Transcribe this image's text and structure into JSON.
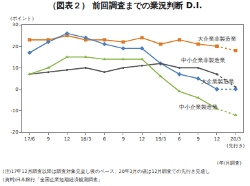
{
  "chart_data": {
    "type": "line",
    "title": "（図表２） 前回調査までの業況判断 D.I.",
    "y_label": "（ポイント）",
    "x_label": "(年/月調査)",
    "categories": [
      "17/6",
      "9",
      "12",
      "18/3",
      "6",
      "9",
      "12",
      "19/3",
      "6",
      "9",
      "12",
      "20/3\n(先行き)"
    ],
    "series": [
      {
        "name": "大企業非製造業",
        "color": "#e07b28",
        "marker": "square",
        "values": [
          23,
          23,
          25,
          23,
          23,
          22,
          24,
          21,
          23,
          21,
          20,
          18
        ]
      },
      {
        "name": "大企業製造業",
        "color": "#4f81bd",
        "marker": "diamond",
        "values": [
          17,
          22,
          26,
          24,
          21,
          19,
          19,
          12,
          7,
          5,
          0,
          0
        ]
      },
      {
        "name": "中小企業非製造業",
        "color": "#595959",
        "marker": "circle",
        "values": [
          7,
          8,
          9,
          10,
          8,
          10,
          11,
          12,
          10,
          10,
          7,
          1
        ]
      },
      {
        "name": "中小企業製造業",
        "color": "#8cb84a",
        "marker": "triangle-up",
        "values": [
          7,
          10,
          15,
          15,
          14,
          14,
          14,
          6,
          -1,
          -4,
          -9,
          -12
        ]
      }
    ],
    "ylim": [
      -20,
      30
    ],
    "yticks": [
      -20,
      -10,
      0,
      10,
      20,
      30
    ],
    "grid": false,
    "annotations": [
      "(注)17年12月調査以降は調査対象見直し後のベース、20年3月の値は12月調査での先行き見通し",
      "(資料)日本銀行「全国企業短期経済観測調査」"
    ]
  }
}
